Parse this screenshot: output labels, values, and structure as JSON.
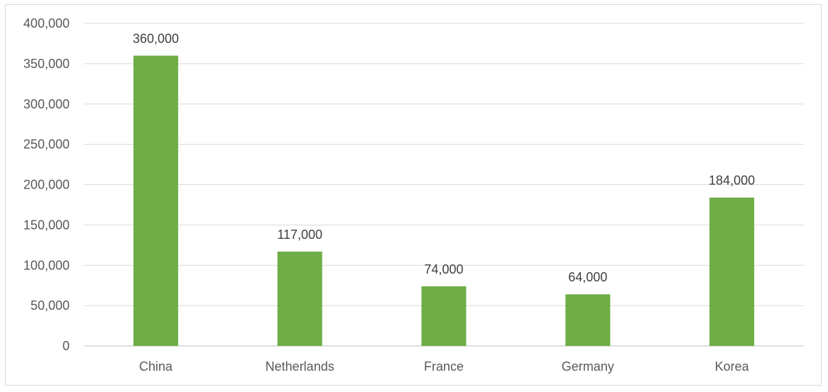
{
  "chart_data": {
    "type": "bar",
    "title": "",
    "xlabel": "",
    "ylabel": "",
    "categories": [
      "China",
      "Netherlands",
      "France",
      "Germany",
      "Korea"
    ],
    "values": [
      360000,
      117000,
      74000,
      64000,
      184000
    ],
    "value_labels": [
      "360,000",
      "117,000",
      "74,000",
      "64,000",
      "184,000"
    ],
    "ylim": [
      0,
      400000
    ],
    "yticks": [
      0,
      50000,
      100000,
      150000,
      200000,
      250000,
      300000,
      350000,
      400000
    ],
    "ytick_labels": [
      "0",
      "50,000",
      "100,000",
      "150,000",
      "200,000",
      "250,000",
      "300,000",
      "350,000",
      "400,000"
    ],
    "grid": true,
    "legend": "none",
    "bar_color": "#70ad47",
    "grid_color": "#d9d9d9",
    "text_color": "#595959"
  }
}
